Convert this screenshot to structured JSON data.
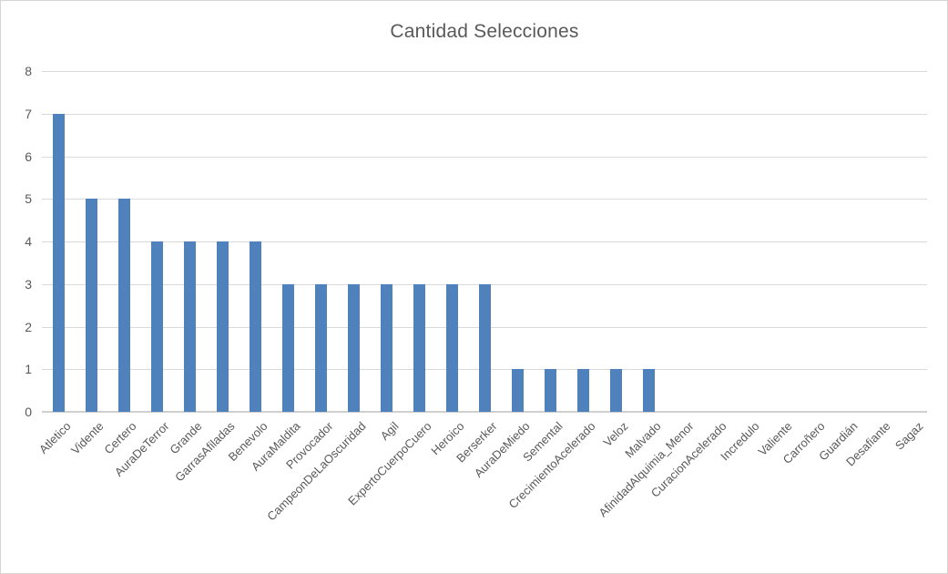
{
  "chart": {
    "background": "#ffffff",
    "frame_border_color": "#d7d4d4"
  },
  "chart_data": {
    "type": "bar",
    "title": "Cantidad Selecciones",
    "categories": [
      "Atletico",
      "Vidente",
      "Certero",
      "AuraDeTerror",
      "Grande",
      "GarrasAfiladas",
      "Benevolo",
      "AuraMaldita",
      "Provocador",
      "CampeonDeLaOscuridad",
      "Agil",
      "ExpertoCuerpoCuero",
      "Heroico",
      "Berserker",
      "AuraDeMiedo",
      "Semental",
      "CrecimientoAcelerado",
      "Veloz",
      "Malvado",
      "AfinidadAlquimia_Menor",
      "CuracionAcelerado",
      "Incredulo",
      "Valiente",
      "Carroñero",
      "Guardián",
      "Desafiante",
      "Sagaz"
    ],
    "values": [
      7,
      5,
      5,
      4,
      4,
      4,
      4,
      3,
      3,
      3,
      3,
      3,
      3,
      3,
      1,
      1,
      1,
      1,
      1,
      0,
      0,
      0,
      0,
      0,
      0,
      0,
      0
    ],
    "xlabel": "",
    "ylabel": "",
    "ylim": [
      0,
      8
    ],
    "yticks": [
      0,
      1,
      2,
      3,
      4,
      5,
      6,
      7,
      8
    ],
    "grid": true,
    "legend_position": "none",
    "bar_color": "#4f81bd",
    "gridline_color": "#d9d9d9",
    "axis_line_color": "#d0cece",
    "text_color": "#595959",
    "title_color": "#595959"
  }
}
